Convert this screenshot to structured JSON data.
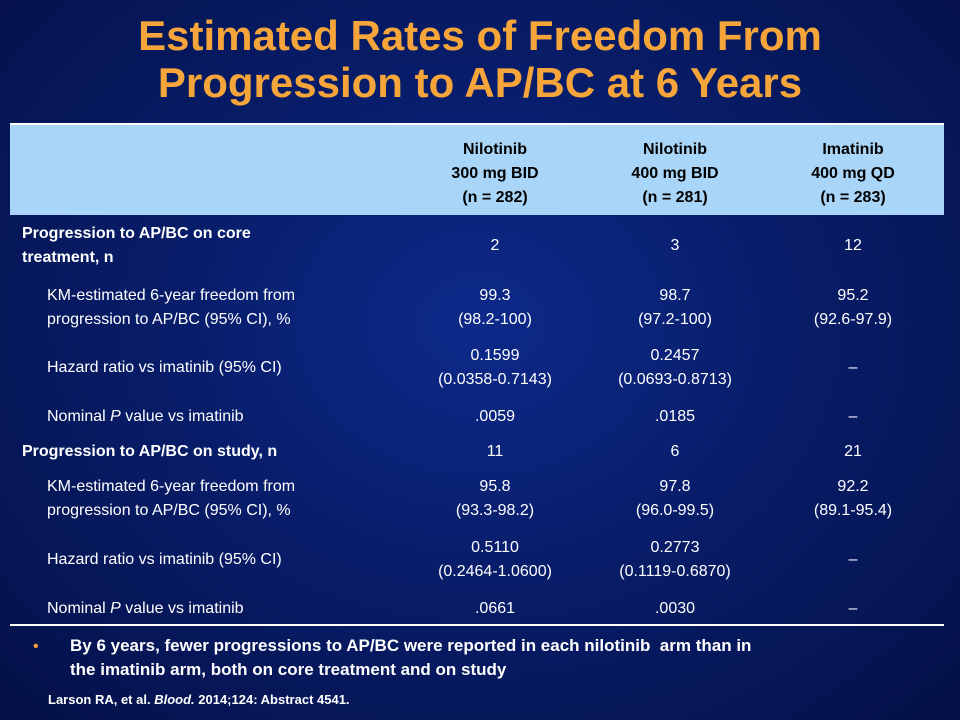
{
  "title": {
    "line1": "Estimated Rates of Freedom From",
    "line2": "Progression to AP/BC at 6 Years"
  },
  "table": {
    "columns": [
      {
        "line1": "Nilotinib",
        "line2": "300 mg BID",
        "line3": "(n = 282)"
      },
      {
        "line1": "Nilotinib",
        "line2": "400 mg BID",
        "line3": "(n = 281)"
      },
      {
        "line1": "Imatinib",
        "line2": "400 mg QD",
        "line3": "(n = 283)"
      }
    ],
    "core": {
      "progression_label_line1": "Progression to AP/BC on core",
      "progression_label_line2": "treatment, n",
      "progression_values": [
        "2",
        "3",
        "12"
      ],
      "km_label_line1": "KM-estimated 6-year freedom from",
      "km_label_line2": "progression to AP/BC (95% CI), %",
      "km_values": [
        {
          "main": "99.3",
          "ci": "(98.2-100)"
        },
        {
          "main": "98.7",
          "ci": "(97.2-100)"
        },
        {
          "main": "95.2",
          "ci": "(92.6-97.9)"
        }
      ],
      "hr_label": "Hazard ratio vs imatinib (95% CI)",
      "hr_values": [
        {
          "main": "0.1599",
          "ci": "(0.0358-0.7143)"
        },
        {
          "main": "0.2457",
          "ci": "(0.0693-0.8713)"
        },
        {
          "main": "–",
          "ci": ""
        }
      ],
      "p_label_prefix": "Nominal",
      "p_label_p": "P",
      "p_label_suffix": "value vs imatinib",
      "p_values": [
        ".0059",
        ".0185",
        "–"
      ]
    },
    "study": {
      "progression_label": "Progression to AP/BC on study, n",
      "progression_values": [
        "11",
        "6",
        "21"
      ],
      "km_label_line1": "KM-estimated 6-year freedom from",
      "km_label_line2": "progression to AP/BC (95% CI), %",
      "km_values": [
        {
          "main": "95.8",
          "ci": "(93.3-98.2)"
        },
        {
          "main": "97.8",
          "ci": "(96.0-99.5)"
        },
        {
          "main": "92.2",
          "ci": "(89.1-95.4)"
        }
      ],
      "hr_label": "Hazard ratio vs imatinib (95% CI)",
      "hr_values": [
        {
          "main": "0.5110",
          "ci": "(0.2464-1.0600)"
        },
        {
          "main": "0.2773",
          "ci": "(0.1119-0.6870)"
        },
        {
          "main": "–",
          "ci": ""
        }
      ],
      "p_label_prefix": "Nominal",
      "p_label_p": "P",
      "p_label_suffix": "value vs imatinib",
      "p_values": [
        ".0661",
        ".0030",
        "–"
      ]
    }
  },
  "bullet": {
    "marker": "•",
    "line1": "By 6 years, fewer progressions to AP/BC were reported in each nilotinib  arm than in",
    "line2": "the imatinib arm, both on core treatment and on study"
  },
  "citation": {
    "authors": "Larson RA, et al.",
    "journal": "Blood.",
    "details": "2014;124: Abstract 4541."
  },
  "colors": {
    "title": "#f5a53a",
    "header_band": "#a9d6f8",
    "background": "#081d6a"
  }
}
